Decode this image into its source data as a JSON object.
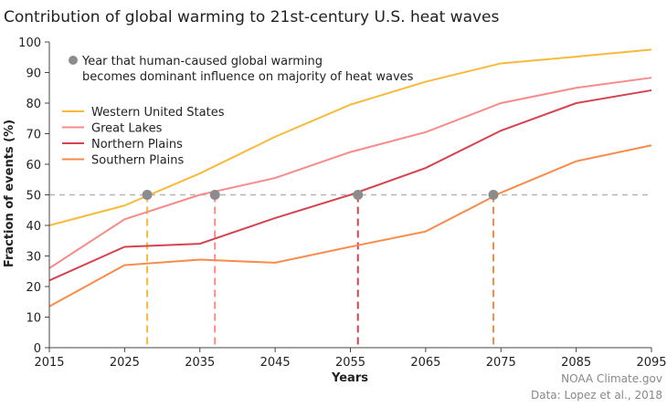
{
  "chart_data": {
    "type": "line",
    "title": "Contribution of global warming to 21st-century U.S. heat waves",
    "xlabel": "Years",
    "ylabel": "Fraction of events (%)",
    "xlim": [
      2015,
      2095
    ],
    "ylim": [
      0,
      100
    ],
    "x_ticks": [
      2015,
      2025,
      2035,
      2045,
      2055,
      2065,
      2075,
      2085,
      2095
    ],
    "y_ticks": [
      0,
      10,
      20,
      30,
      40,
      50,
      60,
      70,
      80,
      90,
      100
    ],
    "grid": false,
    "reference_line": {
      "y": 50,
      "style": "dashed",
      "color": "#b5b5b5"
    },
    "x": [
      2015,
      2025,
      2035,
      2045,
      2055,
      2065,
      2075,
      2085,
      2095
    ],
    "series": [
      {
        "name": "Western United States",
        "color": "#f9b93a",
        "values": [
          40,
          46.5,
          57,
          69,
          79.5,
          87,
          93,
          95.2,
          97.5
        ],
        "crossing_year": 2028
      },
      {
        "name": "Great Lakes",
        "color": "#f88a8a",
        "values": [
          26,
          42,
          50,
          55.5,
          64,
          70.5,
          80,
          85,
          88.3
        ],
        "crossing_year": 2037
      },
      {
        "name": "Northern Plains",
        "color": "#d5434e",
        "values": [
          22,
          33,
          34,
          42.4,
          50,
          58.8,
          71,
          80,
          84.2
        ],
        "crossing_year": 2056
      },
      {
        "name": "Southern Plains",
        "color": "#f98a48",
        "values": [
          13.5,
          27,
          28.8,
          27.8,
          33,
          38,
          50.7,
          61,
          66.2
        ],
        "crossing_year": 2074
      }
    ],
    "marker_legend": "Year that human-caused global warming becomes dominant influence on majority of heat waves",
    "marker_legend_lines": [
      "Year that human-caused global warming",
      "becomes dominant influence on majority of heat waves"
    ],
    "marker_color": "#8c8c8c",
    "legend_position": "top-left"
  },
  "credits": {
    "line1": "NOAA Climate.gov",
    "line2": "Data: Lopez et al., 2018"
  }
}
